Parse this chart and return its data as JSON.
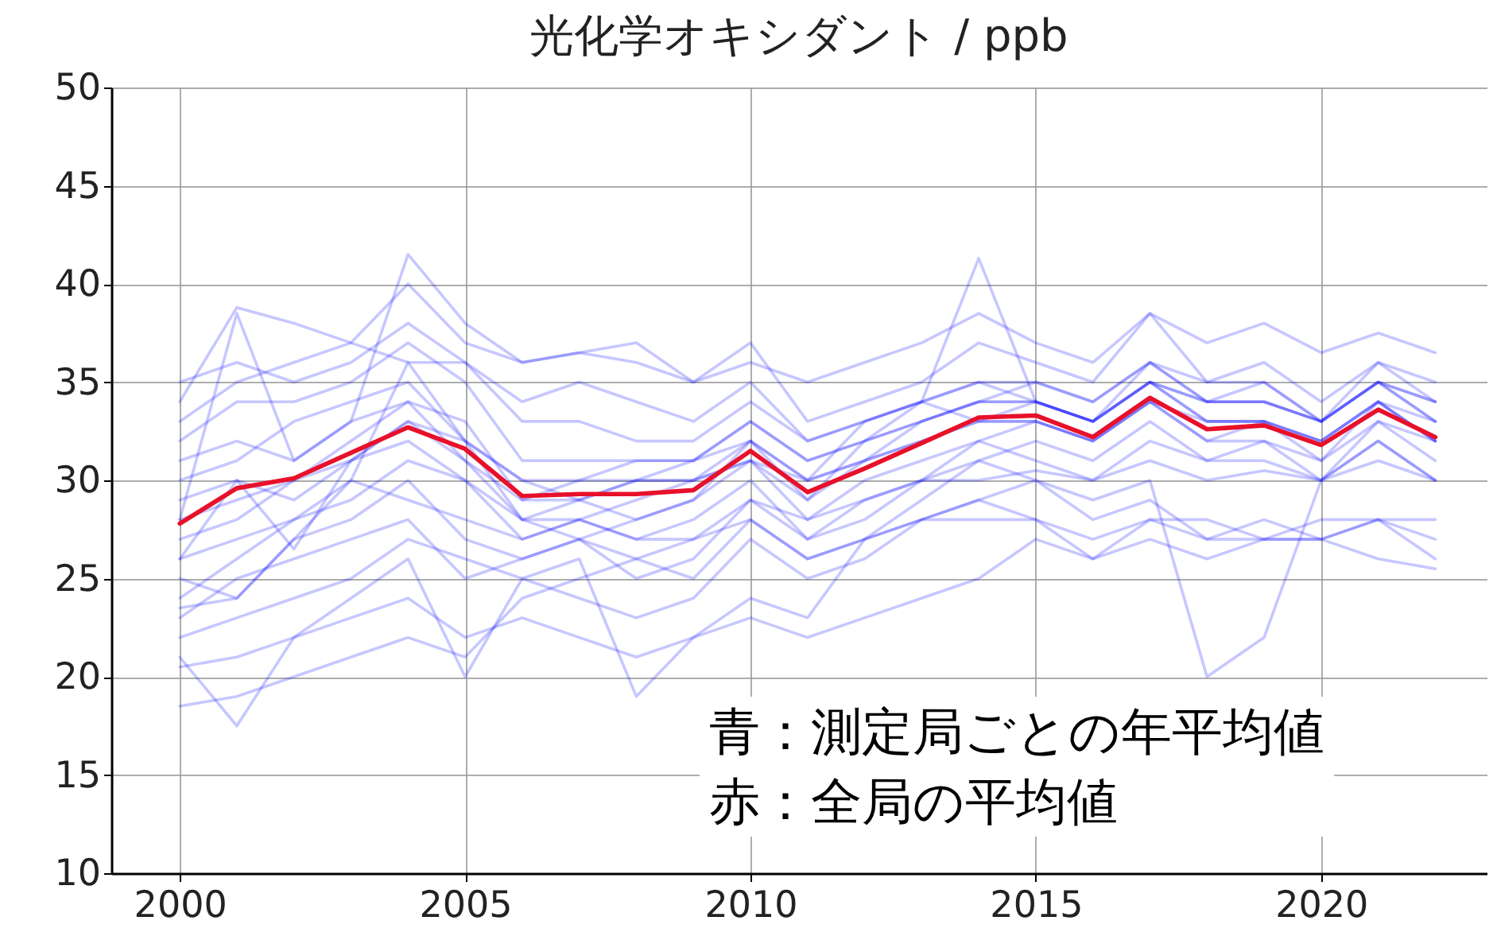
{
  "chart_data": {
    "type": "line",
    "title": "光化学オキシダント / ppb",
    "x": [
      2000,
      2001,
      2002,
      2003,
      2004,
      2005,
      2006,
      2007,
      2008,
      2009,
      2010,
      2011,
      2012,
      2013,
      2014,
      2015,
      2016,
      2017,
      2018,
      2019,
      2020,
      2021,
      2022
    ],
    "xlim": [
      1998.8,
      2022.9
    ],
    "xticks": [
      2000,
      2005,
      2010,
      2015,
      2020
    ],
    "ylim": [
      10,
      50
    ],
    "yticks": [
      10,
      15,
      20,
      25,
      30,
      35,
      40,
      45,
      50
    ],
    "grid": true,
    "marker": "none",
    "line_style": "solid",
    "annotations": [
      "青：測定局ごとの年平均値",
      "赤：全局の平均値"
    ],
    "series": [
      {
        "color": "#0000ff",
        "values": [
          34,
          38.8,
          38,
          37,
          40,
          37,
          36,
          36.5,
          36,
          35,
          37,
          33,
          34,
          35,
          37,
          36,
          35,
          38.5,
          37,
          38,
          36.5,
          37.5,
          36.5
        ]
      },
      {
        "color": "#0000ff",
        "values": [
          18.5,
          19,
          20,
          21,
          22,
          21,
          24,
          25,
          26,
          27,
          29,
          28,
          29,
          30,
          30,
          30.5,
          30,
          31,
          30,
          30.5,
          30,
          31,
          30
        ]
      },
      {
        "color": "#0000ff",
        "values": [
          21,
          17.5,
          22,
          24,
          26,
          20,
          25,
          26,
          19,
          22,
          24,
          23,
          27,
          28,
          29,
          28,
          26,
          28,
          28,
          27,
          27,
          28,
          28
        ]
      },
      {
        "color": "#0000ff",
        "values": [
          23.5,
          24,
          27,
          30,
          36,
          32,
          28,
          27,
          28,
          29,
          32,
          29,
          32,
          34,
          41.3,
          34,
          33,
          35,
          33,
          33,
          32,
          34,
          33
        ]
      },
      {
        "color": "#0000ff",
        "values": [
          26,
          30,
          26.5,
          31,
          33,
          31,
          28,
          28,
          29,
          30,
          31,
          30,
          33,
          34,
          33,
          34,
          33,
          35,
          34,
          34,
          33,
          35,
          34
        ]
      },
      {
        "color": "#0000ff",
        "values": [
          28,
          38.5,
          31,
          33,
          41.5,
          38,
          36,
          36.5,
          37,
          35,
          36,
          35,
          36,
          37,
          38.5,
          37,
          36,
          38.5,
          35,
          36,
          34,
          36,
          35
        ]
      },
      {
        "color": "#0000ff",
        "values": [
          30,
          31,
          33,
          34,
          35,
          32,
          30,
          30,
          31,
          31,
          33,
          31,
          32,
          33,
          34,
          34,
          33,
          35,
          33,
          33,
          32,
          34,
          32
        ]
      },
      {
        "color": "#0000ff",
        "values": [
          27,
          28,
          30,
          31,
          32,
          30,
          28,
          29,
          28,
          29,
          31,
          28,
          30,
          31,
          32,
          33,
          32,
          34,
          32,
          32,
          31,
          33,
          32
        ]
      },
      {
        "color": "#0000ff",
        "values": [
          24,
          26,
          28,
          29,
          31,
          30,
          27,
          28,
          27,
          28,
          30,
          27,
          29,
          30,
          31,
          32,
          31,
          33,
          31,
          32,
          30,
          33,
          31
        ]
      },
      {
        "color": "#0000ff",
        "values": [
          22,
          23,
          24,
          25,
          27,
          26,
          25,
          24,
          23,
          24,
          27,
          25,
          26,
          28,
          29,
          30,
          28,
          29,
          27,
          28,
          27,
          28,
          26
        ]
      },
      {
        "color": "#0000ff",
        "values": [
          25,
          24,
          27,
          28,
          30,
          27,
          26,
          27,
          26,
          25,
          28,
          26,
          27,
          29,
          31,
          30,
          29,
          30,
          20,
          22,
          30,
          32,
          30
        ]
      },
      {
        "color": "#0000ff",
        "values": [
          32,
          34,
          34,
          35,
          37,
          35,
          31,
          31,
          31,
          31,
          33,
          31,
          32,
          33,
          34,
          35,
          34,
          36,
          34,
          34,
          33,
          35,
          33
        ]
      },
      {
        "color": "#0000ff",
        "values": [
          29,
          30,
          29,
          31,
          33,
          32,
          30,
          29,
          30,
          30,
          31,
          29,
          31,
          32,
          33,
          33,
          32,
          34,
          33,
          33,
          32,
          34,
          32
        ]
      },
      {
        "color": "#0000ff",
        "values": [
          20.5,
          21,
          22,
          23,
          24,
          22,
          23,
          22,
          21,
          22,
          23,
          22,
          23,
          24,
          25,
          27,
          26,
          27,
          26,
          27,
          27,
          26,
          25.5
        ]
      },
      {
        "color": "#0000ff",
        "values": [
          35,
          36,
          35,
          36,
          38,
          36,
          33,
          33,
          32,
          32,
          34,
          32,
          33,
          34,
          35,
          35,
          34,
          36,
          34,
          35,
          33,
          35,
          34
        ]
      },
      {
        "color": "#0000ff",
        "values": [
          26,
          27,
          28,
          30,
          29,
          28,
          27,
          28,
          27,
          27,
          28,
          26,
          27,
          28,
          28,
          28,
          27,
          28,
          27,
          27,
          28,
          28,
          27
        ]
      },
      {
        "color": "#0000ff",
        "values": [
          31,
          32,
          31,
          33,
          34,
          33,
          29,
          30,
          30,
          31,
          32,
          30,
          31,
          33,
          34,
          34,
          33,
          35,
          34,
          34,
          33,
          35,
          33
        ]
      },
      {
        "color": "#0000ff",
        "values": [
          23,
          25,
          26,
          27,
          28,
          25,
          26,
          27,
          25,
          26,
          29,
          27,
          28,
          30,
          32,
          31,
          30,
          32,
          31,
          31,
          30,
          32,
          30
        ]
      },
      {
        "color": "#0000ff",
        "values": [
          28,
          29,
          30,
          32,
          34,
          31,
          29,
          29,
          30,
          30,
          32,
          30,
          31,
          32,
          33,
          33,
          32,
          34,
          32,
          33,
          31,
          34,
          32
        ]
      },
      {
        "color": "#0000ff",
        "values": [
          33,
          35,
          36,
          37,
          36,
          36,
          34,
          35,
          34,
          33,
          35,
          32,
          33,
          34,
          35,
          34,
          33,
          36,
          35,
          35,
          33,
          36,
          34
        ]
      },
      {
        "color": "#e8102a",
        "values": [
          27.8,
          29.6,
          30.1,
          31.4,
          32.7,
          31.6,
          29.2,
          29.3,
          29.3,
          29.5,
          31.5,
          29.4,
          30.6,
          31.9,
          33.2,
          33.3,
          32.2,
          34.2,
          32.6,
          32.8,
          31.8,
          33.6,
          32.2
        ]
      }
    ]
  }
}
